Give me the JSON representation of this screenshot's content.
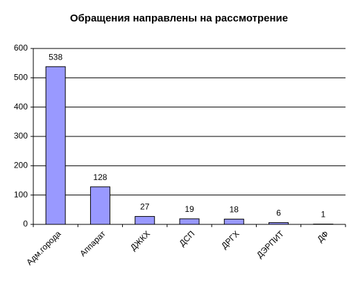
{
  "chart_data": {
    "type": "bar",
    "title": "Обращения направлены на рассмотрение",
    "categories": [
      "Адм.города",
      "Аппарат",
      "ДЖКХ",
      "ДСП",
      "ДРГХ",
      "ДЭРПИТ",
      "ДФ"
    ],
    "values": [
      538,
      128,
      27,
      19,
      18,
      6,
      1
    ],
    "color": "#9999ff",
    "ylim": [
      0,
      600
    ],
    "yticks": [
      0,
      100,
      200,
      300,
      400,
      500,
      600
    ],
    "grid": true
  }
}
